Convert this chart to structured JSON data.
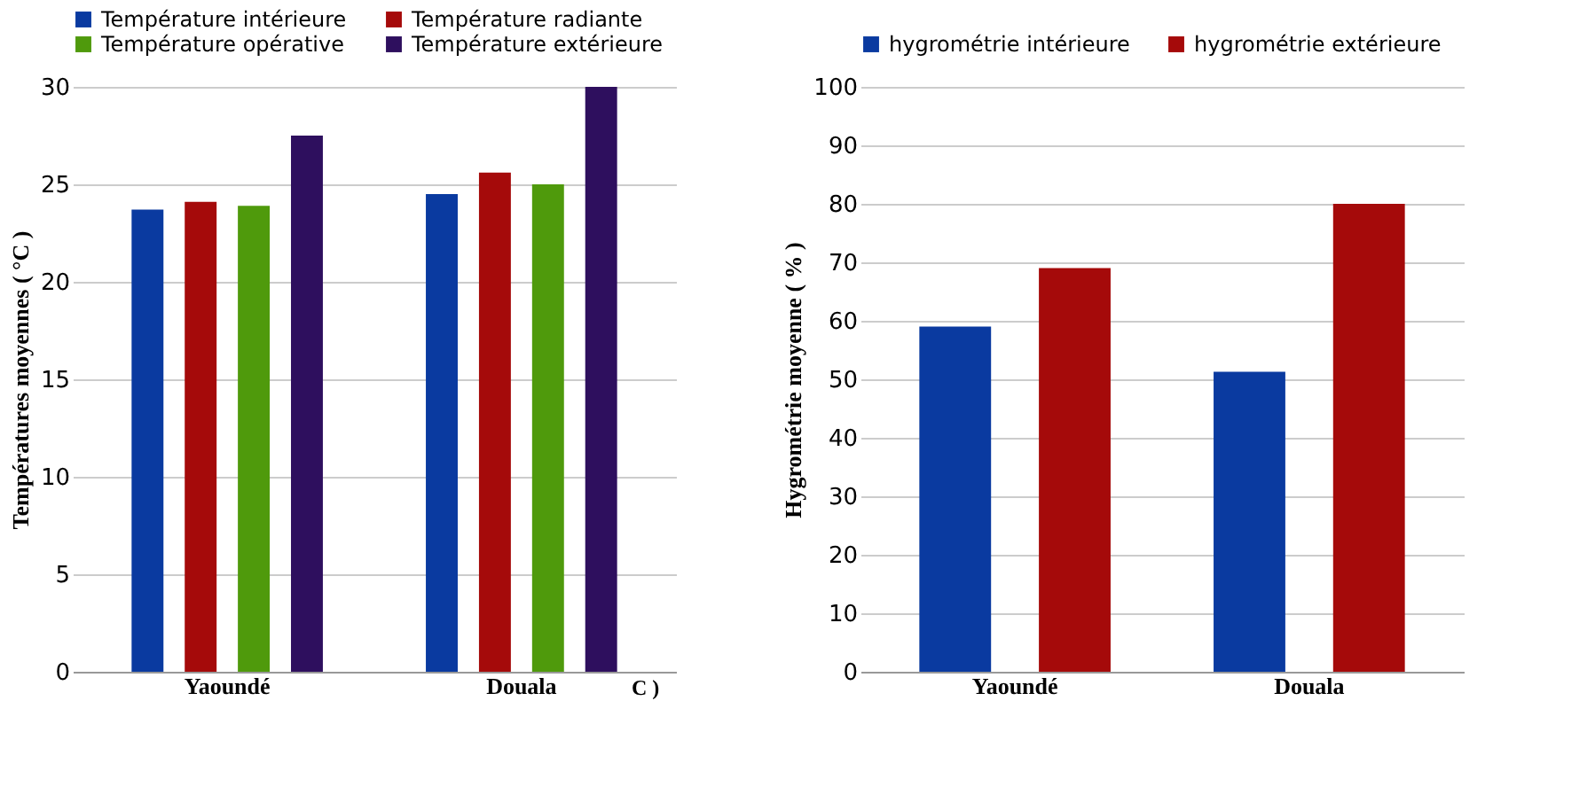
{
  "chart_data": [
    {
      "type": "bar",
      "categories": [
        "Yaoundé",
        "Douala"
      ],
      "ylabel": "Températures moyennes ( °C )",
      "ylim": [
        0,
        30
      ],
      "yticks": [
        0,
        5,
        10,
        15,
        20,
        25,
        30
      ],
      "grid": "y",
      "legend": "top",
      "annotations": [
        "C )"
      ],
      "series": [
        {
          "name": "Température intérieure",
          "color": "#0a3aa0",
          "values": [
            23.7,
            24.5
          ]
        },
        {
          "name": "Température radiante",
          "color": "#a50a0a",
          "values": [
            24.1,
            25.6
          ]
        },
        {
          "name": "Température opérative",
          "color": "#4f9a0c",
          "values": [
            23.9,
            25.0
          ]
        },
        {
          "name": "Température extérieure",
          "color": "#2e0f5e",
          "values": [
            27.5,
            30.0
          ]
        }
      ]
    },
    {
      "type": "bar",
      "categories": [
        "Yaoundé",
        "Douala"
      ],
      "ylabel": "Hygrométrie moyenne ( % )",
      "ylim": [
        0,
        100
      ],
      "yticks": [
        0,
        10,
        20,
        30,
        40,
        50,
        60,
        70,
        80,
        90,
        100
      ],
      "grid": "y",
      "legend": "top",
      "series": [
        {
          "name": "hygrométrie intérieure",
          "color": "#0a3aa0",
          "values": [
            59,
            51.3
          ]
        },
        {
          "name": "hygrométrie extérieure",
          "color": "#a50a0a",
          "values": [
            69,
            80
          ]
        }
      ]
    }
  ]
}
